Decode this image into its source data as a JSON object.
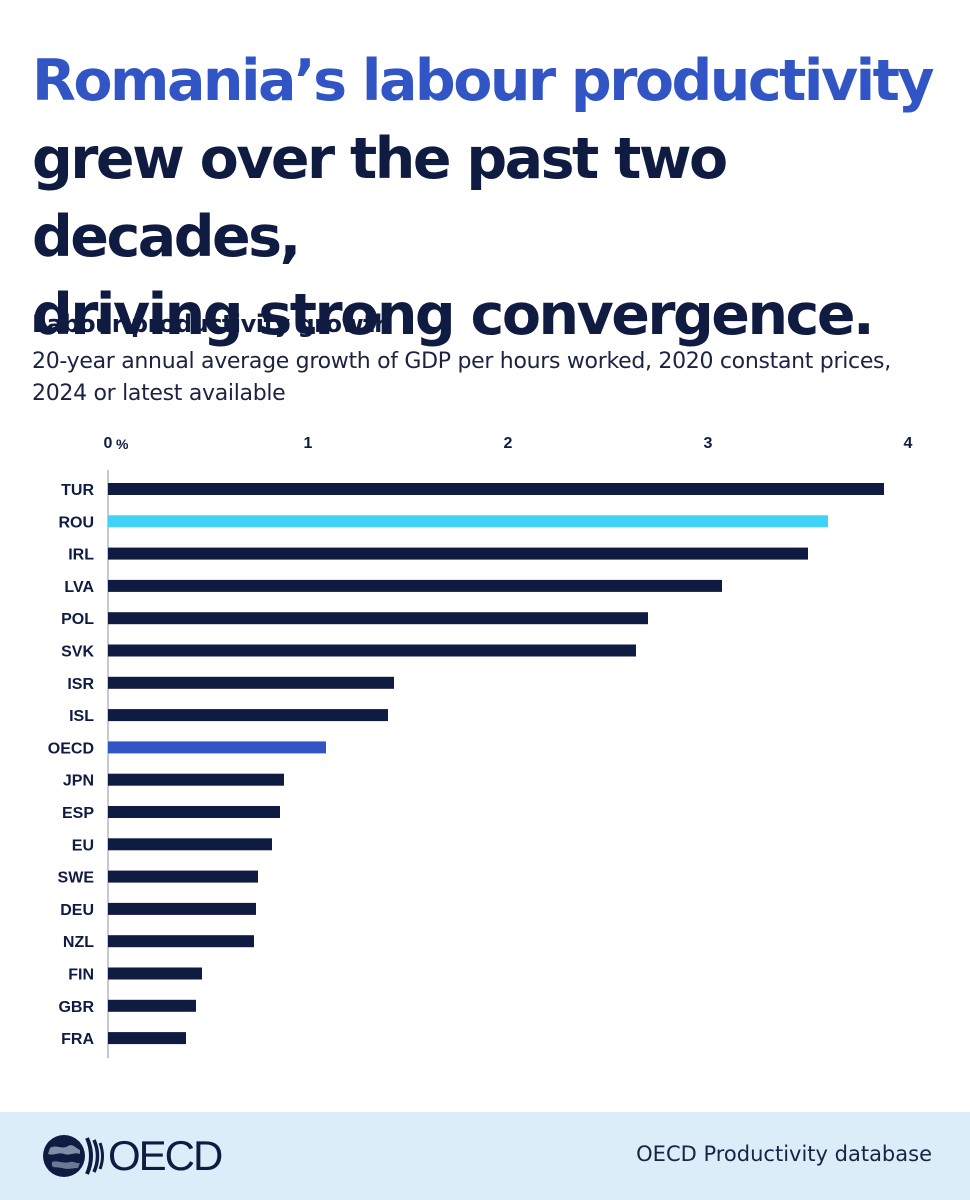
{
  "headline": {
    "line1": "Romania’s labour productivity",
    "line2": "grew over the past two decades,",
    "line3": "driving strong convergence."
  },
  "colors": {
    "headline_accent": "#3155c5",
    "bar_default": "#0f1b40",
    "bar_highlight": "#41d3f7",
    "bar_oecd": "#3155c5",
    "footer_bg": "#dcedfa"
  },
  "chart_data": {
    "type": "bar",
    "orientation": "horizontal",
    "title": "Labour productivity growth",
    "subtitle": "20-year annual average growth of GDP per hours worked, 2020 constant prices, 2024 or latest available",
    "unit": "%",
    "xlim": [
      0,
      4
    ],
    "xticks": [
      "0",
      "1",
      "2",
      "3",
      "4"
    ],
    "grid": false,
    "categories": [
      "TUR",
      "ROU",
      "IRL",
      "LVA",
      "POL",
      "SVK",
      "ISR",
      "ISL",
      "OECD",
      "JPN",
      "ESP",
      "EU",
      "SWE",
      "DEU",
      "NZL",
      "FIN",
      "GBR",
      "FRA"
    ],
    "values": [
      3.88,
      3.6,
      3.5,
      3.07,
      2.7,
      2.64,
      1.43,
      1.4,
      1.09,
      0.88,
      0.86,
      0.82,
      0.75,
      0.74,
      0.73,
      0.47,
      0.44,
      0.39
    ],
    "highlight": {
      "ROU": "highlight",
      "OECD": "oecd"
    }
  },
  "footer": {
    "logo_icon": "oecd-globe-icon",
    "logo_text": "OECD",
    "source": "OECD Productivity database"
  }
}
